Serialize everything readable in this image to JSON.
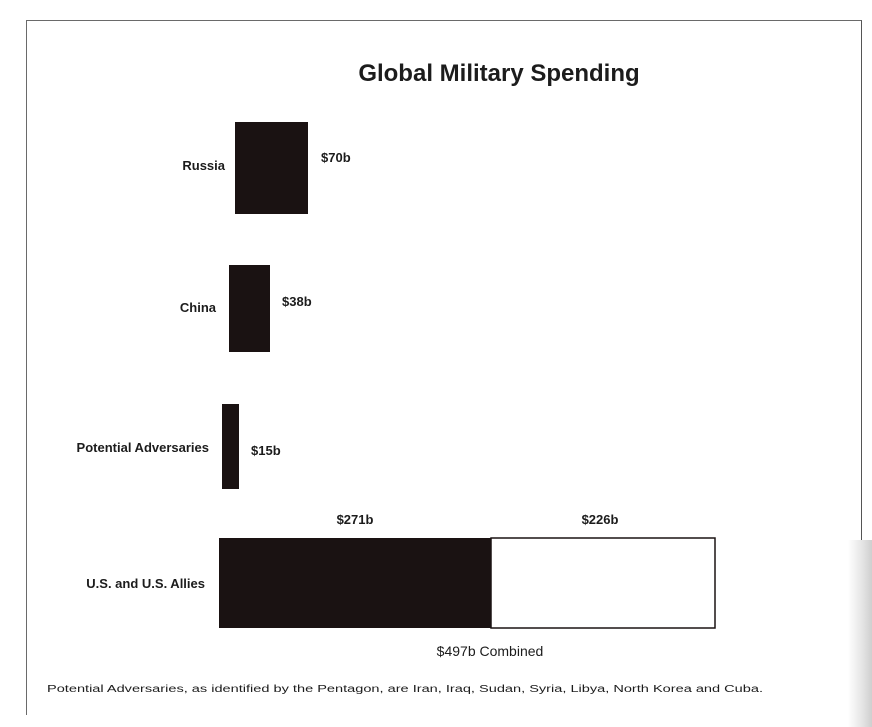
{
  "chart_data": {
    "type": "bar",
    "orientation": "horizontal",
    "title": "Global Military Spending",
    "xlabel": "",
    "ylabel": "",
    "grid": false,
    "legend": "none",
    "unit": "billion USD",
    "categories": [
      "Russia",
      "China",
      "Potential Adversaries",
      "U.S. and U.S. Allies"
    ],
    "bars": [
      {
        "category": "Russia",
        "segments": [
          {
            "value": 70,
            "label": "$70b",
            "color": "#1a1212"
          }
        ]
      },
      {
        "category": "China",
        "segments": [
          {
            "value": 38,
            "label": "$38b",
            "color": "#1a1212"
          }
        ]
      },
      {
        "category": "Potential Adversaries",
        "segments": [
          {
            "value": 15,
            "label": "$15b",
            "color": "#1a1212"
          }
        ]
      },
      {
        "category": "U.S. and U.S. Allies",
        "segments": [
          {
            "value": 271,
            "label": "$271b",
            "color": "#1a1212"
          },
          {
            "value": 226,
            "label": "$226b",
            "color": "#ffffff"
          }
        ],
        "total_label": "$497b Combined"
      }
    ],
    "footnote": "Potential Adversaries, as identified by the Pentagon, are Iran, Iraq, Sudan, Syria, Libya, North Korea and Cuba."
  }
}
